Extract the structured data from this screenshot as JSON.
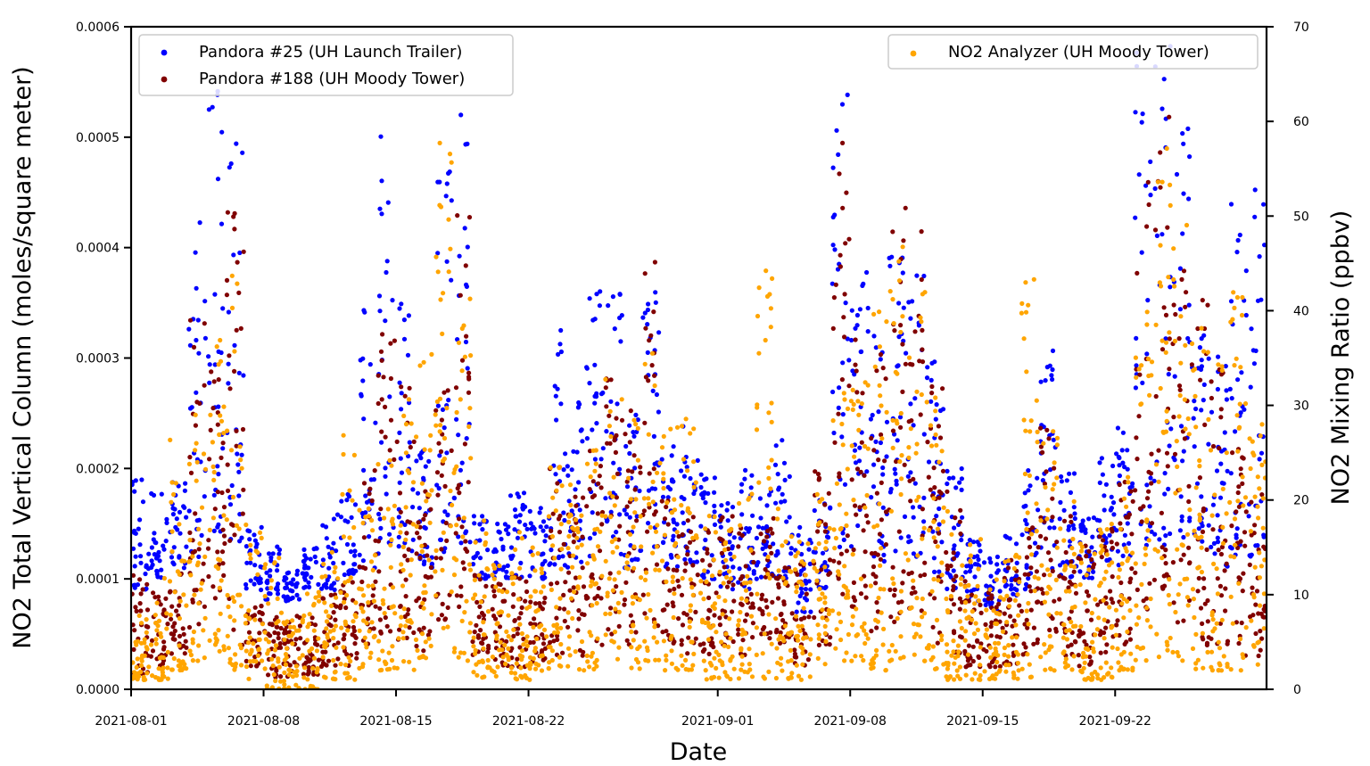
{
  "chart_data": {
    "type": "scatter",
    "xlabel": "Date",
    "ylabel_left": "NO2 Total Vertical Column (moles/square meter)",
    "ylabel_right": "NO2 Mixing Ratio (ppbv)",
    "x_range": [
      "2021-08-01",
      "2021-09-30"
    ],
    "ylim_left": [
      0,
      0.0006
    ],
    "ylim_right": [
      0,
      70
    ],
    "x_ticks": [
      "2021-08-01",
      "2021-08-08",
      "2021-08-15",
      "2021-08-22",
      "2021-09-01",
      "2021-09-08",
      "2021-09-15",
      "2021-09-22"
    ],
    "y_ticks_left": [
      "0.0000",
      "0.0001",
      "0.0002",
      "0.0003",
      "0.0004",
      "0.0005",
      "0.0006"
    ],
    "y_ticks_right": [
      "0",
      "10",
      "20",
      "30",
      "40",
      "50",
      "60",
      "70"
    ],
    "grid": false,
    "legends": [
      {
        "placement": "top-left",
        "entries": [
          "Pandora #25 (UH Launch Trailer)",
          "Pandora #188 (UH Moody Tower)"
        ]
      },
      {
        "placement": "top-right",
        "entries": [
          "NO2 Analyzer (UH Moody Tower)"
        ]
      }
    ],
    "series": [
      {
        "name": "Pandora #25 (UH Launch Trailer)",
        "axis": "left",
        "color": "#0000ff",
        "daily_range": [
          [
            "2021-08-01",
            9e-05,
            0.00019
          ],
          [
            "2021-08-02",
            0.0001,
            0.00018
          ],
          [
            "2021-08-03",
            0.00011,
            0.00019
          ],
          [
            "2021-08-04",
            0.00012,
            0.00044
          ],
          [
            "2021-08-05",
            0.00014,
            0.00055
          ],
          [
            "2021-08-06",
            0.00013,
            0.00052
          ],
          [
            "2021-08-07",
            9e-05,
            0.00015
          ],
          [
            "2021-08-08",
            8e-05,
            0.00013
          ],
          [
            "2021-08-09",
            8e-05,
            0.00011
          ],
          [
            "2021-08-10",
            9e-05,
            0.00013
          ],
          [
            "2021-08-11",
            9e-05,
            0.00016
          ],
          [
            "2021-08-12",
            0.0001,
            0.00018
          ],
          [
            "2021-08-13",
            0.00011,
            0.00035
          ],
          [
            "2021-08-14",
            0.00012,
            0.00052
          ],
          [
            "2021-08-15",
            0.00012,
            0.00035
          ],
          [
            "2021-08-16",
            0.00011,
            0.00022
          ],
          [
            "2021-08-17",
            0.00012,
            0.00048
          ],
          [
            "2021-08-18",
            0.00013,
            0.00053
          ],
          [
            "2021-08-19",
            0.0001,
            0.00016
          ],
          [
            "2021-08-20",
            0.0001,
            0.00015
          ],
          [
            "2021-08-21",
            0.0001,
            0.00018
          ],
          [
            "2021-08-22",
            0.0001,
            0.00017
          ],
          [
            "2021-08-23",
            0.00011,
            0.00033
          ],
          [
            "2021-08-24",
            0.00011,
            0.00026
          ],
          [
            "2021-08-25",
            0.00012,
            0.00037
          ],
          [
            "2021-08-26",
            0.00012,
            0.00036
          ],
          [
            "2021-08-27",
            0.00011,
            0.00025
          ],
          [
            "2021-08-28",
            0.00012,
            0.00036
          ],
          [
            "2021-08-29",
            0.00011,
            0.00022
          ],
          [
            "2021-08-30",
            0.00011,
            0.00024
          ],
          [
            "2021-08-31",
            0.0001,
            0.0002
          ],
          [
            "2021-09-01",
            9e-05,
            0.00017
          ],
          [
            "2021-09-02",
            9e-05,
            0.0002
          ],
          [
            "2021-09-03",
            0.0001,
            0.00019
          ],
          [
            "2021-09-04",
            0.0001,
            0.00023
          ],
          [
            "2021-09-05",
            7e-05,
            0.00015
          ],
          [
            "2021-09-06",
            9e-05,
            0.00018
          ],
          [
            "2021-09-07",
            0.00012,
            0.00055
          ],
          [
            "2021-09-08",
            0.00012,
            0.00041
          ],
          [
            "2021-09-09",
            0.00011,
            0.00032
          ],
          [
            "2021-09-10",
            0.00011,
            0.0004
          ],
          [
            "2021-09-11",
            0.00012,
            0.00038
          ],
          [
            "2021-09-12",
            0.0001,
            0.0003
          ],
          [
            "2021-09-13",
            9e-05,
            0.0002
          ],
          [
            "2021-09-14",
            8e-05,
            0.00014
          ],
          [
            "2021-09-15",
            7e-05,
            0.00012
          ],
          [
            "2021-09-16",
            8e-05,
            0.00014
          ],
          [
            "2021-09-17",
            9e-05,
            0.0002
          ],
          [
            "2021-09-18",
            0.0001,
            0.00031
          ],
          [
            "2021-09-19",
            0.0001,
            0.0002
          ],
          [
            "2021-09-20",
            0.0001,
            0.00016
          ],
          [
            "2021-09-21",
            0.00011,
            0.00021
          ],
          [
            "2021-09-22",
            0.00011,
            0.00024
          ],
          [
            "2021-09-23",
            0.00013,
            0.00059
          ],
          [
            "2021-09-24",
            0.00013,
            0.00059
          ],
          [
            "2021-09-25",
            0.00012,
            0.00051
          ],
          [
            "2021-09-26",
            0.00012,
            0.00033
          ],
          [
            "2021-09-27",
            0.00011,
            0.00032
          ],
          [
            "2021-09-28",
            0.00012,
            0.00045
          ],
          [
            "2021-09-29",
            0.00012,
            0.00047
          ],
          [
            "2021-09-30",
            0.0001,
            0.00018
          ]
        ]
      },
      {
        "name": "Pandora #188 (UH Moody Tower)",
        "axis": "left",
        "color": "#800000",
        "daily_range": [
          [
            "2021-08-01",
            1e-05,
            0.00011
          ],
          [
            "2021-08-02",
            2e-05,
            0.0001
          ],
          [
            "2021-08-03",
            3e-05,
            0.00011
          ],
          [
            "2021-08-04",
            5e-05,
            0.00034
          ],
          [
            "2021-08-05",
            8e-05,
            0.00029
          ],
          [
            "2021-08-06",
            4e-05,
            0.00044
          ],
          [
            "2021-08-07",
            2e-05,
            8e-05
          ],
          [
            "2021-08-08",
            1e-05,
            7e-05
          ],
          [
            "2021-08-09",
            1e-05,
            7e-05
          ],
          [
            "2021-08-10",
            1e-05,
            8e-05
          ],
          [
            "2021-08-11",
            2e-05,
            9e-05
          ],
          [
            "2021-08-12",
            2e-05,
            0.0001
          ],
          [
            "2021-08-13",
            4e-05,
            0.0002
          ],
          [
            "2021-08-14",
            5e-05,
            0.00034
          ],
          [
            "2021-08-15",
            4e-05,
            0.00028
          ],
          [
            "2021-08-16",
            3e-05,
            0.00018
          ],
          [
            "2021-08-17",
            6e-05,
            0.00028
          ],
          [
            "2021-08-18",
            7e-05,
            0.00045
          ],
          [
            "2021-08-19",
            3e-05,
            0.00012
          ],
          [
            "2021-08-20",
            2e-05,
            0.0001
          ],
          [
            "2021-08-21",
            2e-05,
            0.00011
          ],
          [
            "2021-08-22",
            2e-05,
            0.0001
          ],
          [
            "2021-08-23",
            3e-05,
            0.0002
          ],
          [
            "2021-08-24",
            3e-05,
            0.00018
          ],
          [
            "2021-08-25",
            4e-05,
            0.00022
          ],
          [
            "2021-08-26",
            5e-05,
            0.0003
          ],
          [
            "2021-08-27",
            4e-05,
            0.00026
          ],
          [
            "2021-08-28",
            5e-05,
            0.00041
          ],
          [
            "2021-08-29",
            4e-05,
            0.00018
          ],
          [
            "2021-08-30",
            3e-05,
            0.00016
          ],
          [
            "2021-08-31",
            3e-05,
            0.00015
          ],
          [
            "2021-09-01",
            4e-05,
            0.00016
          ],
          [
            "2021-09-02",
            3e-05,
            0.00015
          ],
          [
            "2021-09-03",
            4e-05,
            0.00017
          ],
          [
            "2021-09-04",
            4e-05,
            0.00016
          ],
          [
            "2021-09-05",
            2e-05,
            0.00012
          ],
          [
            "2021-09-06",
            4e-05,
            0.0002
          ],
          [
            "2021-09-07",
            8e-05,
            0.0005
          ],
          [
            "2021-09-08",
            6e-05,
            0.00035
          ],
          [
            "2021-09-09",
            5e-05,
            0.00031
          ],
          [
            "2021-09-10",
            6e-05,
            0.00045
          ],
          [
            "2021-09-11",
            7e-05,
            0.00043
          ],
          [
            "2021-09-12",
            4e-05,
            0.00028
          ],
          [
            "2021-09-13",
            3e-05,
            0.00018
          ],
          [
            "2021-09-14",
            2e-05,
            0.0001
          ],
          [
            "2021-09-15",
            2e-05,
            9e-05
          ],
          [
            "2021-09-16",
            2e-05,
            0.00012
          ],
          [
            "2021-09-17",
            3e-05,
            0.00016
          ],
          [
            "2021-09-18",
            4e-05,
            0.00025
          ],
          [
            "2021-09-19",
            3e-05,
            0.00016
          ],
          [
            "2021-09-20",
            2e-05,
            0.00013
          ],
          [
            "2021-09-21",
            3e-05,
            0.00015
          ],
          [
            "2021-09-22",
            4e-05,
            0.00019
          ],
          [
            "2021-09-23",
            7e-05,
            0.00046
          ],
          [
            "2021-09-24",
            8e-05,
            0.00053
          ],
          [
            "2021-09-25",
            6e-05,
            0.00044
          ],
          [
            "2021-09-26",
            4e-05,
            0.00036
          ],
          [
            "2021-09-27",
            4e-05,
            0.0003
          ],
          [
            "2021-09-28",
            3e-05,
            0.00022
          ],
          [
            "2021-09-29",
            3e-05,
            0.00018
          ],
          [
            "2021-09-30",
            2e-05,
            0.00012
          ]
        ]
      },
      {
        "name": "NO2 Analyzer (UH Moody Tower)",
        "axis": "right",
        "color": "#ffa500",
        "daily_range": [
          [
            "2021-08-01",
            1,
            8
          ],
          [
            "2021-08-02",
            1,
            12
          ],
          [
            "2021-08-03",
            2,
            27
          ],
          [
            "2021-08-04",
            3,
            30
          ],
          [
            "2021-08-05",
            4,
            38
          ],
          [
            "2021-08-06",
            2,
            46
          ],
          [
            "2021-08-07",
            1,
            18
          ],
          [
            "2021-08-08",
            0,
            14
          ],
          [
            "2021-08-09",
            0,
            8
          ],
          [
            "2021-08-10",
            0,
            11
          ],
          [
            "2021-08-11",
            1,
            15
          ],
          [
            "2021-08-12",
            1,
            27
          ],
          [
            "2021-08-13",
            2,
            20
          ],
          [
            "2021-08-14",
            2,
            25
          ],
          [
            "2021-08-15",
            2,
            31
          ],
          [
            "2021-08-16",
            3,
            38
          ],
          [
            "2021-08-17",
            4,
            58
          ],
          [
            "2021-08-18",
            3,
            45
          ],
          [
            "2021-08-19",
            1,
            18
          ],
          [
            "2021-08-20",
            1,
            16
          ],
          [
            "2021-08-21",
            1,
            17
          ],
          [
            "2021-08-22",
            1,
            15
          ],
          [
            "2021-08-23",
            2,
            24
          ],
          [
            "2021-08-24",
            2,
            22
          ],
          [
            "2021-08-25",
            2,
            26
          ],
          [
            "2021-08-26",
            3,
            36
          ],
          [
            "2021-08-27",
            2,
            30
          ],
          [
            "2021-08-28",
            3,
            38
          ],
          [
            "2021-08-29",
            2,
            28
          ],
          [
            "2021-08-30",
            2,
            29
          ],
          [
            "2021-08-31",
            1,
            19
          ],
          [
            "2021-09-01",
            1,
            17
          ],
          [
            "2021-09-02",
            1,
            21
          ],
          [
            "2021-09-03",
            1,
            46
          ],
          [
            "2021-09-04",
            1,
            20
          ],
          [
            "2021-09-05",
            1,
            16
          ],
          [
            "2021-09-06",
            2,
            22
          ],
          [
            "2021-09-07",
            3,
            32
          ],
          [
            "2021-09-08",
            3,
            36
          ],
          [
            "2021-09-09",
            2,
            40
          ],
          [
            "2021-09-10",
            3,
            48
          ],
          [
            "2021-09-11",
            3,
            42
          ],
          [
            "2021-09-12",
            2,
            32
          ],
          [
            "2021-09-13",
            1,
            20
          ],
          [
            "2021-09-14",
            1,
            16
          ],
          [
            "2021-09-15",
            1,
            12
          ],
          [
            "2021-09-16",
            1,
            15
          ],
          [
            "2021-09-17",
            1,
            44
          ],
          [
            "2021-09-18",
            2,
            28
          ],
          [
            "2021-09-19",
            2,
            20
          ],
          [
            "2021-09-20",
            1,
            16
          ],
          [
            "2021-09-21",
            1,
            18
          ],
          [
            "2021-09-22",
            2,
            24
          ],
          [
            "2021-09-23",
            3,
            40
          ],
          [
            "2021-09-24",
            3,
            60
          ],
          [
            "2021-09-25",
            3,
            52
          ],
          [
            "2021-09-26",
            2,
            42
          ],
          [
            "2021-09-27",
            2,
            35
          ],
          [
            "2021-09-28",
            2,
            42
          ],
          [
            "2021-09-29",
            2,
            28
          ],
          [
            "2021-09-30",
            1,
            18
          ]
        ]
      }
    ]
  }
}
